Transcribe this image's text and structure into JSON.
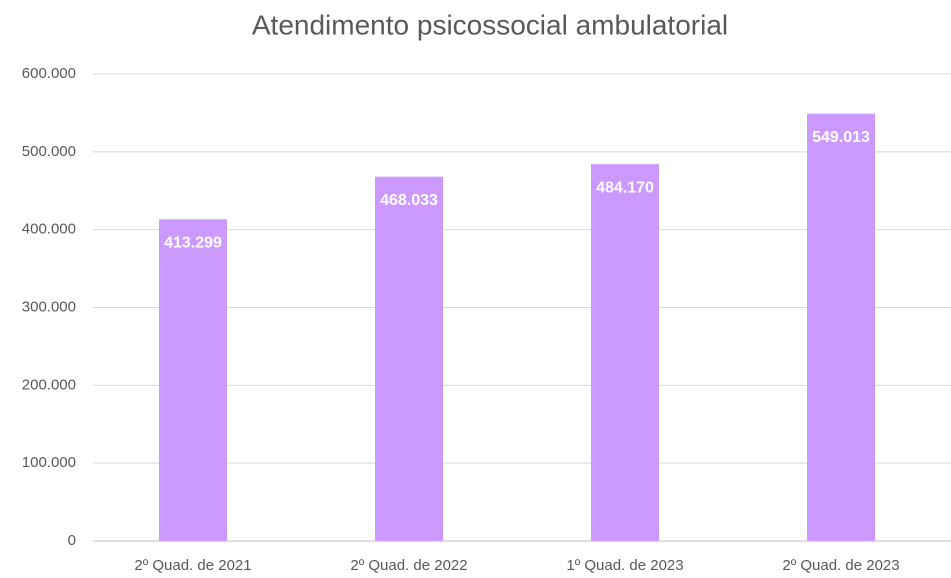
{
  "chart_data": {
    "type": "bar",
    "title": "Atendimento psicossocial ambulatorial",
    "categories": [
      "2º Quad. de 2021",
      "2º Quad. de 2022",
      "1º Quad. de 2023",
      "2º Quad. de 2023"
    ],
    "values": [
      413299,
      468033,
      484170,
      549013
    ],
    "value_labels": [
      "413.299",
      "468.033",
      "484.170",
      "549.013"
    ],
    "color": "#cc99ff",
    "ylim": [
      0,
      600000
    ],
    "yticks": [
      0,
      {
        "value": 100000,
        "label": "100.000"
      },
      {
        "value": 200000,
        "label": "200.000"
      },
      {
        "value": 300000,
        "label": "300.000"
      },
      {
        "value": 400000,
        "label": "400.000"
      },
      {
        "value": 500000,
        "label": "500.000"
      },
      {
        "value": 600000,
        "label": "600.000"
      }
    ],
    "grid": true
  }
}
